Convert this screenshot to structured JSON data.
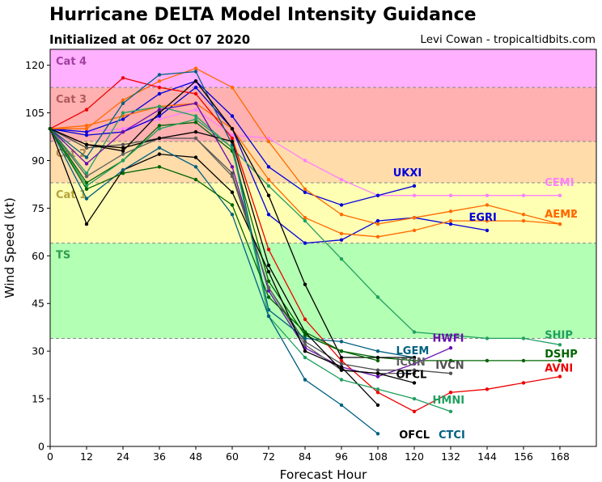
{
  "title": "Hurricane DELTA Model Intensity Guidance",
  "subtitle": "Initialized at 06z Oct 07 2020",
  "credit": "Levi Cowan - tropicaltidbits.com",
  "chart_data": {
    "type": "line",
    "xlabel": "Forecast Hour",
    "ylabel": "Wind Speed (kt)",
    "xlim": [
      0,
      180
    ],
    "ylim": [
      0,
      125
    ],
    "xticks": [
      0,
      12,
      24,
      36,
      48,
      60,
      72,
      84,
      96,
      108,
      120,
      132,
      144,
      156,
      168
    ],
    "yticks": [
      0,
      15,
      30,
      45,
      60,
      75,
      90,
      105,
      120
    ],
    "grid": false,
    "bands": [
      {
        "label": "TS",
        "from": 34,
        "to": 64,
        "color": "#b3ffb3"
      },
      {
        "label": "Cat 1",
        "from": 64,
        "to": 83,
        "color": "#ffffb3"
      },
      {
        "label": "Cat 2",
        "from": 83,
        "to": 96,
        "color": "#ffdcaa"
      },
      {
        "label": "Cat 3",
        "from": 96,
        "to": 113,
        "color": "#ffb0b0"
      },
      {
        "label": "Cat 4",
        "from": 113,
        "to": 125,
        "color": "#ffb0ff"
      }
    ],
    "band_label_colors": {
      "TS": "#2e9b4e",
      "Cat 1": "#b3a33a",
      "Cat 2": "#b08650",
      "Cat 3": "#b05a5a",
      "Cat 4": "#a040a0"
    },
    "series": [
      {
        "name": "CEMI",
        "color": "#ff80ff",
        "x": [
          0,
          12,
          24,
          36,
          48,
          60,
          72,
          84,
          96,
          108,
          120,
          132,
          144,
          156,
          168
        ],
        "y": [
          100,
          99,
          100,
          103,
          106,
          98,
          97,
          90,
          84,
          79,
          79,
          79,
          79,
          79,
          79
        ]
      },
      {
        "name": "UKXI",
        "color": "#0000dd",
        "x": [
          0,
          12,
          24,
          36,
          48,
          60,
          72,
          84,
          96,
          108,
          120
        ],
        "y": [
          100,
          99,
          103,
          111,
          115,
          104,
          88,
          80,
          76,
          79,
          82
        ]
      },
      {
        "name": "EGRI",
        "color": "#0000dd",
        "x": [
          0,
          12,
          24,
          36,
          48,
          60,
          72,
          84,
          96,
          108,
          120,
          132,
          144
        ],
        "y": [
          100,
          98,
          99,
          104,
          113,
          100,
          73,
          64,
          65,
          71,
          72,
          70,
          68
        ]
      },
      {
        "name": "AEMI",
        "color": "#ff6a00",
        "x": [
          0,
          12,
          24,
          36,
          48,
          60,
          72,
          84,
          96,
          108,
          120,
          132,
          144,
          156,
          168
        ],
        "y": [
          100,
          100,
          109,
          115,
          119,
          113,
          96,
          81,
          73,
          70,
          72,
          74,
          76,
          73,
          70
        ]
      },
      {
        "name": "AEM2",
        "color": "#ff6a00",
        "x": [
          0,
          12,
          24,
          36,
          48,
          60,
          72,
          84,
          96,
          108,
          120,
          132,
          144,
          156,
          168
        ],
        "y": [
          100,
          101,
          104,
          107,
          108,
          100,
          84,
          72,
          67,
          66,
          68,
          71,
          71,
          71,
          70
        ]
      },
      {
        "name": "SHIP",
        "color": "#20a060",
        "x": [
          0,
          12,
          24,
          36,
          48,
          60,
          72,
          84,
          96,
          108,
          120,
          132,
          144,
          156,
          168
        ],
        "y": [
          100,
          86,
          105,
          107,
          104,
          94,
          82,
          71,
          59,
          47,
          36,
          35,
          34,
          34,
          32
        ]
      },
      {
        "name": "DSHP",
        "color": "#006400",
        "x": [
          0,
          12,
          24,
          36,
          48,
          60,
          72,
          84,
          96,
          108,
          120,
          132,
          144,
          156,
          168
        ],
        "y": [
          100,
          83,
          90,
          101,
          102,
          93,
          52,
          35,
          30,
          28,
          27,
          27,
          27,
          27,
          27
        ]
      },
      {
        "name": "AVNI",
        "color": "#ee0000",
        "x": [
          0,
          12,
          24,
          36,
          48,
          60,
          72,
          84,
          96,
          108,
          120,
          132,
          144,
          156,
          168
        ],
        "y": [
          100,
          106,
          116,
          113,
          111,
          97,
          62,
          40,
          27,
          17,
          11,
          17,
          18,
          20,
          22
        ]
      },
      {
        "name": "HWFI",
        "color": "#6a0dad",
        "x": [
          0,
          12,
          24,
          36,
          48,
          60,
          72,
          84,
          96,
          108,
          120,
          132
        ],
        "y": [
          100,
          89,
          99,
          106,
          108,
          88,
          49,
          31,
          25,
          22,
          26,
          31
        ]
      },
      {
        "name": "IVCN",
        "color": "#505050",
        "x": [
          0,
          12,
          24,
          36,
          48,
          60,
          72,
          84,
          96,
          108,
          120,
          132
        ],
        "y": [
          100,
          94,
          95,
          97,
          97,
          86,
          50,
          33,
          26,
          24,
          24,
          23
        ]
      },
      {
        "name": "ICON",
        "color": "#606060",
        "x": [
          0,
          12,
          24,
          36,
          48,
          60,
          72,
          84,
          96,
          108,
          120
        ],
        "y": [
          100,
          85,
          92,
          97,
          97,
          85,
          50,
          32,
          24,
          23,
          23
        ]
      },
      {
        "name": "LGEM",
        "color": "#006080",
        "x": [
          0,
          12,
          24,
          36,
          48,
          60,
          72,
          84,
          96,
          108,
          120
        ],
        "y": [
          100,
          91,
          108,
          117,
          118,
          95,
          43,
          34,
          33,
          30,
          28
        ]
      },
      {
        "name": "OFCL",
        "color": "#000000",
        "x": [
          0,
          12,
          24,
          36,
          48,
          60,
          72,
          84,
          96,
          108,
          120
        ],
        "y": [
          100,
          95,
          93,
          105,
          115,
          100,
          79,
          51,
          28,
          28,
          28
        ]
      },
      {
        "name": "OFCL",
        "color": "#000000",
        "x": [
          0,
          12,
          24,
          36,
          48,
          60,
          72,
          84,
          96,
          108,
          120
        ],
        "y": [
          100,
          95,
          94,
          97,
          99,
          96,
          57,
          36,
          24,
          23,
          20
        ]
      },
      {
        "name": "OFCL",
        "color": "#000000",
        "x": [
          0,
          12,
          24,
          36,
          48,
          60,
          72,
          84,
          96,
          108
        ],
        "y": [
          100,
          70,
          87,
          92,
          91,
          80,
          55,
          30,
          25,
          13
        ]
      },
      {
        "name": "HMNI",
        "color": "#20a060",
        "x": [
          0,
          12,
          24,
          36,
          48,
          60,
          72,
          84,
          96,
          108,
          120,
          132
        ],
        "y": [
          100,
          82,
          90,
          100,
          103,
          94,
          41,
          28,
          21,
          18,
          15,
          11
        ]
      },
      {
        "name": "CTCI",
        "color": "#006080",
        "x": [
          0,
          12,
          24,
          36,
          48,
          60,
          72,
          84,
          96,
          108
        ],
        "y": [
          100,
          78,
          87,
          94,
          88,
          73,
          41,
          21,
          13,
          4
        ]
      },
      {
        "name": "",
        "color": "#006400",
        "x": [
          0,
          12,
          24,
          36,
          48,
          60,
          72,
          84,
          96,
          108
        ],
        "y": [
          100,
          81,
          86,
          88,
          84,
          76,
          47,
          36,
          30,
          27
        ]
      }
    ],
    "labels": [
      {
        "text": "UKXI",
        "x": 113,
        "y": 85,
        "color": "#0000dd"
      },
      {
        "text": "CEMI",
        "x": 163,
        "y": 82,
        "color": "#ff80ff"
      },
      {
        "text": "EGRI",
        "x": 138,
        "y": 71,
        "color": "#0000dd"
      },
      {
        "text": "AEM2",
        "x": 163,
        "y": 72,
        "color": "#ff6a00"
      },
      {
        "text": "AEMI",
        "x": 163,
        "y": 72,
        "color": "#ff6a00"
      },
      {
        "text": "HWFI",
        "x": 126,
        "y": 33,
        "color": "#6a0dad"
      },
      {
        "text": "SHIP",
        "x": 163,
        "y": 34,
        "color": "#20a060"
      },
      {
        "text": "LGEM",
        "x": 114,
        "y": 29,
        "color": "#006080"
      },
      {
        "text": "DSHP",
        "x": 163,
        "y": 28,
        "color": "#006400"
      },
      {
        "text": "ICON",
        "x": 114,
        "y": 25.5,
        "color": "#606060"
      },
      {
        "text": "IVCN",
        "x": 127,
        "y": 24.5,
        "color": "#505050"
      },
      {
        "text": "AVNI",
        "x": 163,
        "y": 23.5,
        "color": "#ee0000"
      },
      {
        "text": "OFCL",
        "x": 114,
        "y": 21.5,
        "color": "#000000"
      },
      {
        "text": "HMNI",
        "x": 126,
        "y": 13.5,
        "color": "#20a060"
      },
      {
        "text": "OFCL",
        "x": 115,
        "y": 2.5,
        "color": "#000000"
      },
      {
        "text": "CTCI",
        "x": 128,
        "y": 2.5,
        "color": "#006080"
      }
    ]
  }
}
